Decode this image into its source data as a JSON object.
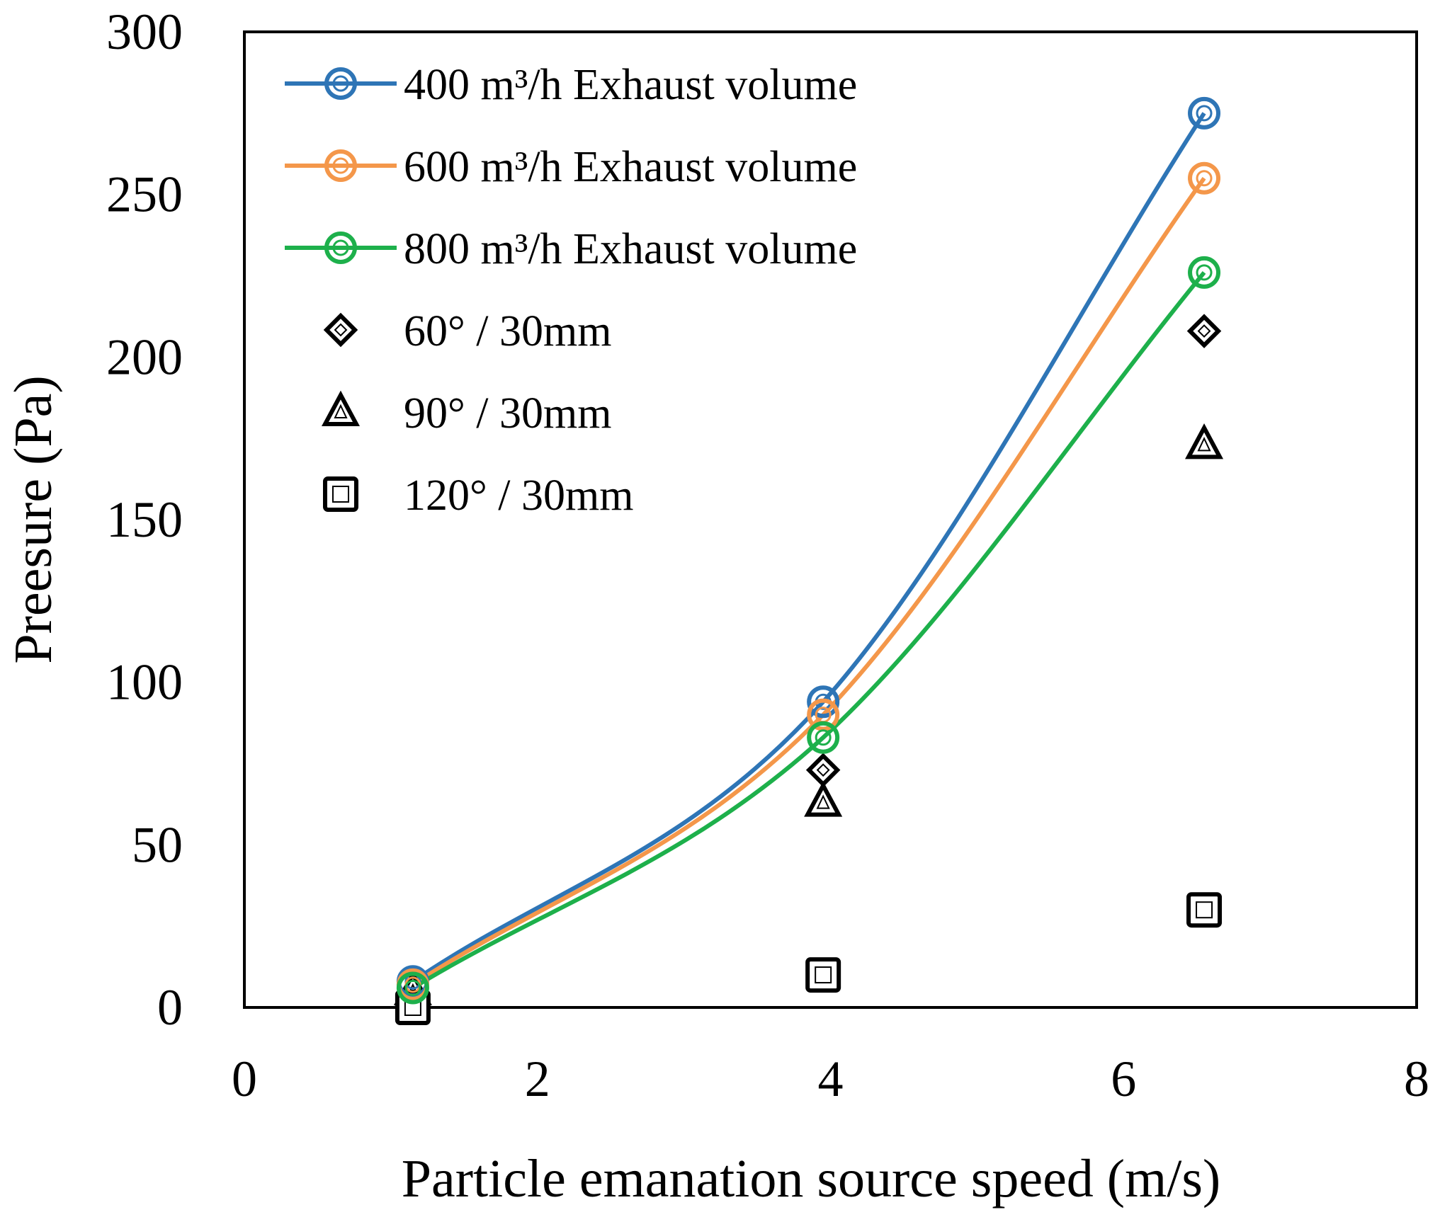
{
  "chart_data": {
    "type": "scatter",
    "title": "",
    "xlabel": "Particle emanation source speed (m/s)",
    "ylabel": "Preesure (Pa)",
    "xlim": [
      0,
      8
    ],
    "ylim": [
      0,
      300
    ],
    "xticks": [
      "0",
      "2",
      "4",
      "6",
      "8"
    ],
    "yticks": [
      "0",
      "50",
      "100",
      "150",
      "200",
      "250",
      "300"
    ],
    "grid": false,
    "legend_position": "top-left",
    "series": [
      {
        "name": "400 m³/h Exhaust volume",
        "marker": "double-circle",
        "line": "smooth",
        "color": "#2E75B6",
        "x": [
          1.15,
          3.95,
          6.55
        ],
        "y": [
          8,
          94,
          275
        ]
      },
      {
        "name": "600 m³/h Exhaust volume",
        "marker": "double-circle",
        "line": "smooth",
        "color": "#F4974A",
        "x": [
          1.15,
          3.95,
          6.55
        ],
        "y": [
          7,
          90,
          255
        ]
      },
      {
        "name": "800 m³/h Exhaust volume",
        "marker": "double-circle",
        "line": "smooth",
        "color": "#1DB04B",
        "x": [
          1.15,
          3.95,
          6.55
        ],
        "y": [
          6,
          83,
          226
        ]
      },
      {
        "name": "60° / 30mm",
        "marker": "diamond",
        "line": "none",
        "color": "#000000",
        "x": [
          1.15,
          3.95,
          6.55
        ],
        "y": [
          3,
          73,
          208
        ]
      },
      {
        "name": "90° / 30mm",
        "marker": "triangle",
        "line": "none",
        "color": "#000000",
        "x": [
          1.15,
          3.95,
          6.55
        ],
        "y": [
          5,
          63,
          173
        ]
      },
      {
        "name": "120° / 30mm",
        "marker": "square",
        "line": "none",
        "color": "#000000",
        "x": [
          1.15,
          3.95,
          6.55
        ],
        "y": [
          0,
          10,
          30
        ]
      }
    ]
  }
}
